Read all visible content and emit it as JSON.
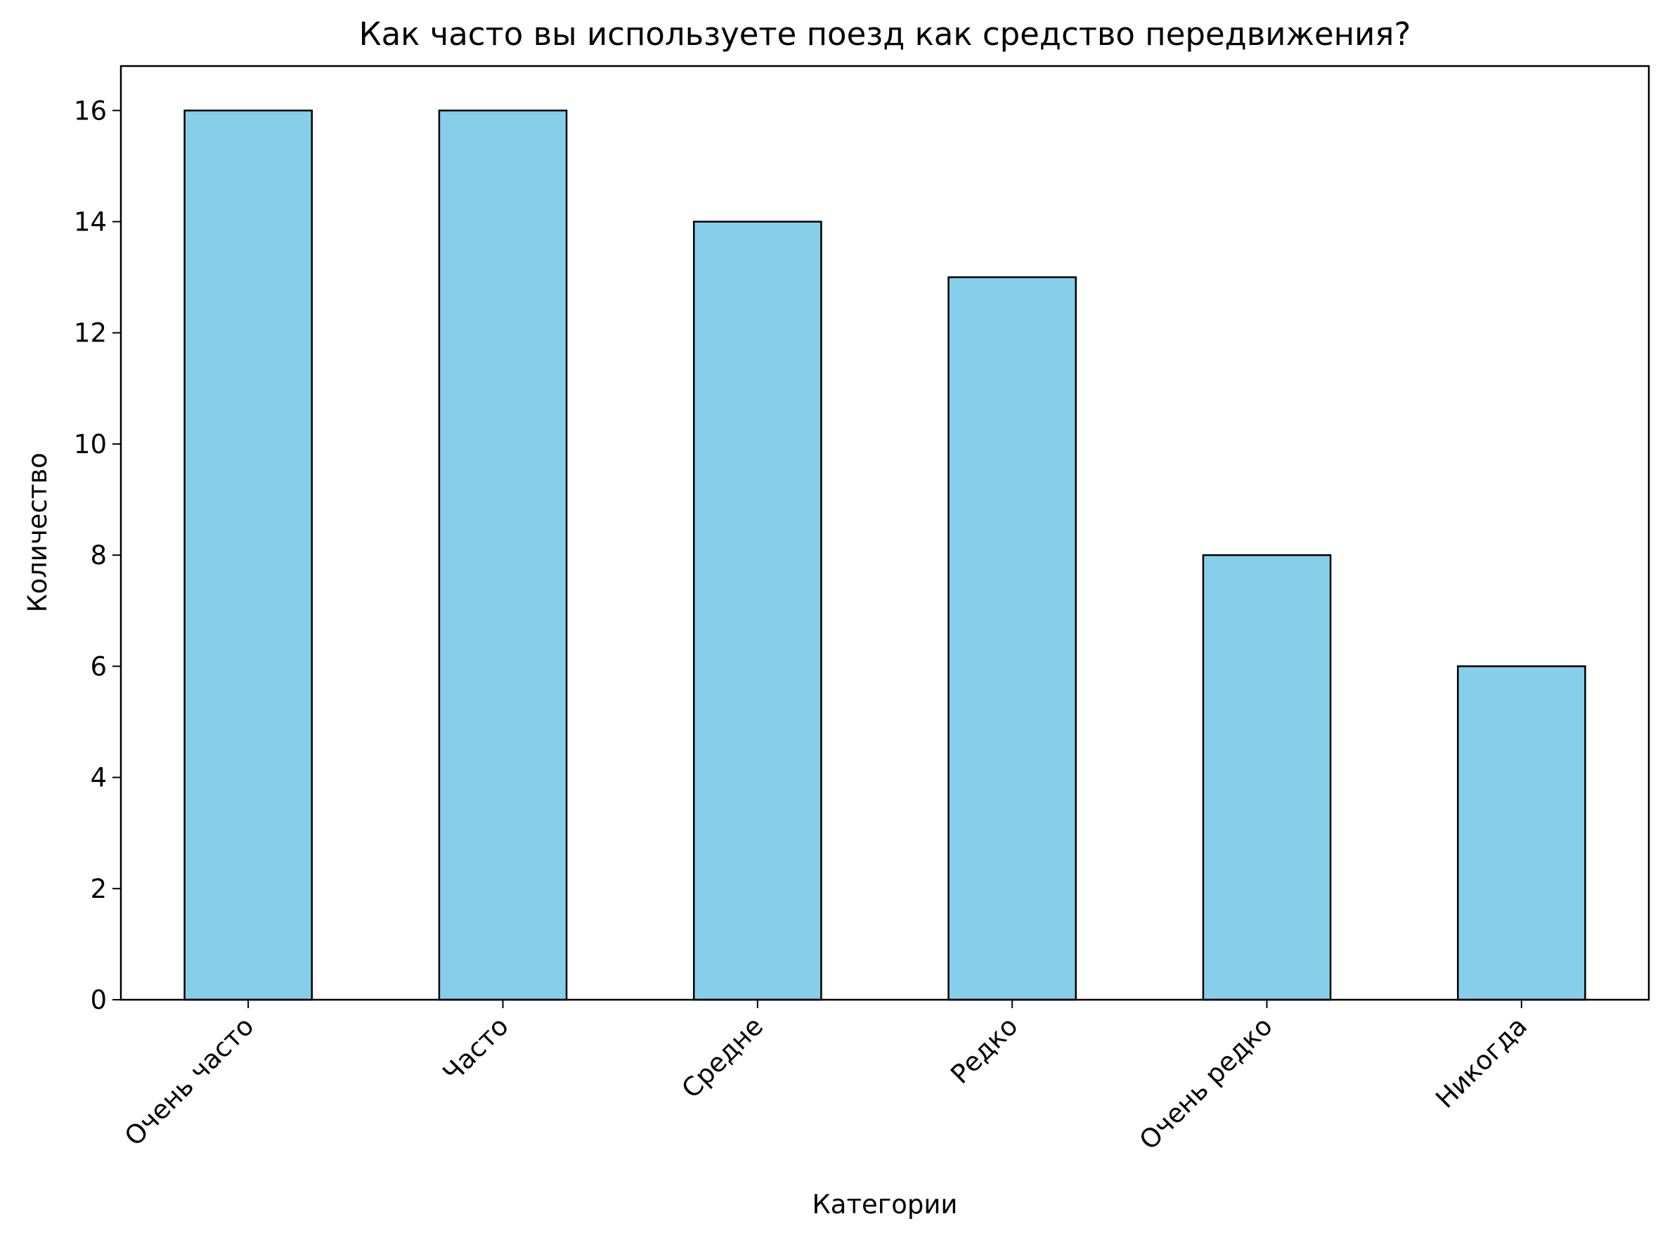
{
  "chart_data": {
    "type": "bar",
    "title": "Как часто вы используете поезд как средство передвижения?",
    "xlabel": "Категории",
    "ylabel": "Количество",
    "categories": [
      "Очень часто",
      "Часто",
      "Средне",
      "Редко",
      "Очень редко",
      "Никогда"
    ],
    "values": [
      16,
      16,
      14,
      13,
      8,
      6
    ],
    "ylim": [
      0,
      16.8
    ],
    "yticks": [
      0,
      2,
      4,
      6,
      8,
      10,
      12,
      14,
      16
    ],
    "grid": false,
    "legend": "none",
    "bar_color": "#87CEEB",
    "edge_color": "#000000"
  }
}
